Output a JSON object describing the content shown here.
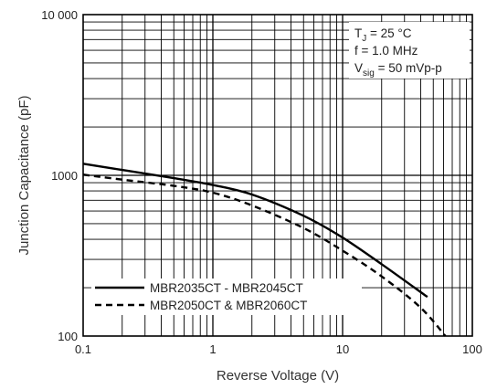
{
  "chart_data": {
    "type": "line",
    "xscale": "log",
    "yscale": "log",
    "xlabel": "Reverse Voltage (V)",
    "ylabel": "Junction Capacitance (pF)",
    "xlim": [
      0.1,
      100
    ],
    "ylim": [
      100,
      10000
    ],
    "x_tick_labels": [
      "0.1",
      "1",
      "10",
      "100"
    ],
    "y_tick_labels": [
      "100",
      "1000",
      "10 000"
    ],
    "grid": true,
    "legend_position": "bottom-left",
    "annotation": {
      "line1_main": "T",
      "line1_sub": "J",
      "line1_rest": " = 25 °C",
      "line2": "f = 1.0 MHz",
      "line3_main": "V",
      "line3_sub": "sig",
      "line3_rest": " = 50 mVp-p"
    },
    "series": [
      {
        "name": "MBR2035CT - MBR2045CT",
        "style": "solid",
        "color": "#000000",
        "x": [
          0.1,
          0.2,
          0.5,
          1,
          2,
          5,
          10,
          20,
          45
        ],
        "y": [
          1180,
          1080,
          960,
          870,
          760,
          560,
          410,
          280,
          175
        ]
      },
      {
        "name": "MBR2050CT & MBR2060CT",
        "style": "dashed",
        "color": "#000000",
        "x": [
          0.1,
          0.2,
          0.5,
          1,
          2,
          5,
          10,
          20,
          40,
          62
        ],
        "y": [
          1010,
          940,
          860,
          780,
          650,
          470,
          340,
          235,
          150,
          100
        ]
      }
    ]
  }
}
